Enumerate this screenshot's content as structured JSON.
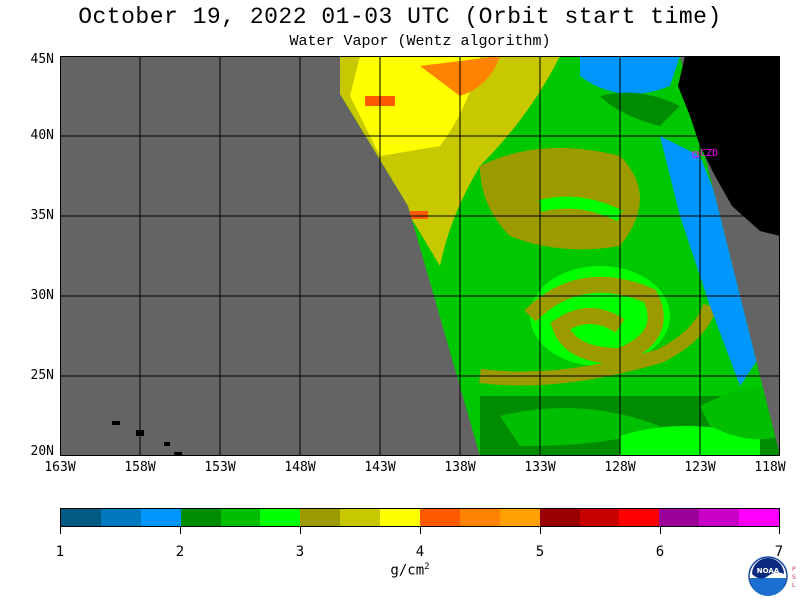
{
  "header": {
    "title": "October 19, 2022  01-03 UTC  (Orbit start time)",
    "subtitle": "Water Vapor (Wentz algorithm)"
  },
  "map": {
    "lat_labels": [
      "45N",
      "40N",
      "35N",
      "30N",
      "25N",
      "20N"
    ],
    "lon_labels": [
      "163W",
      "158W",
      "153W",
      "148W",
      "143W",
      "138W",
      "133W",
      "128W",
      "123W",
      "118W"
    ],
    "station_label": "CZD",
    "colors": {
      "no_data": "#646464",
      "land": "#000000",
      "grid": "#000000",
      "station": "#ff00ff"
    }
  },
  "colorbar": {
    "ticks": [
      "1",
      "2",
      "3",
      "4",
      "5",
      "6",
      "7"
    ],
    "units_base": "g/cm",
    "units_exp": "2",
    "colors": [
      "#005a82",
      "#0078be",
      "#0096ff",
      "#008c00",
      "#00be00",
      "#00ff00",
      "#9b9b00",
      "#c8c800",
      "#ffff00",
      "#ff5a00",
      "#ff8200",
      "#ffa000",
      "#9b0000",
      "#c80000",
      "#ff0000",
      "#9b009b",
      "#c800c8",
      "#ff00ff"
    ]
  },
  "logo": {
    "text": "NOAA",
    "side_text": [
      "P",
      "S",
      "L"
    ]
  }
}
